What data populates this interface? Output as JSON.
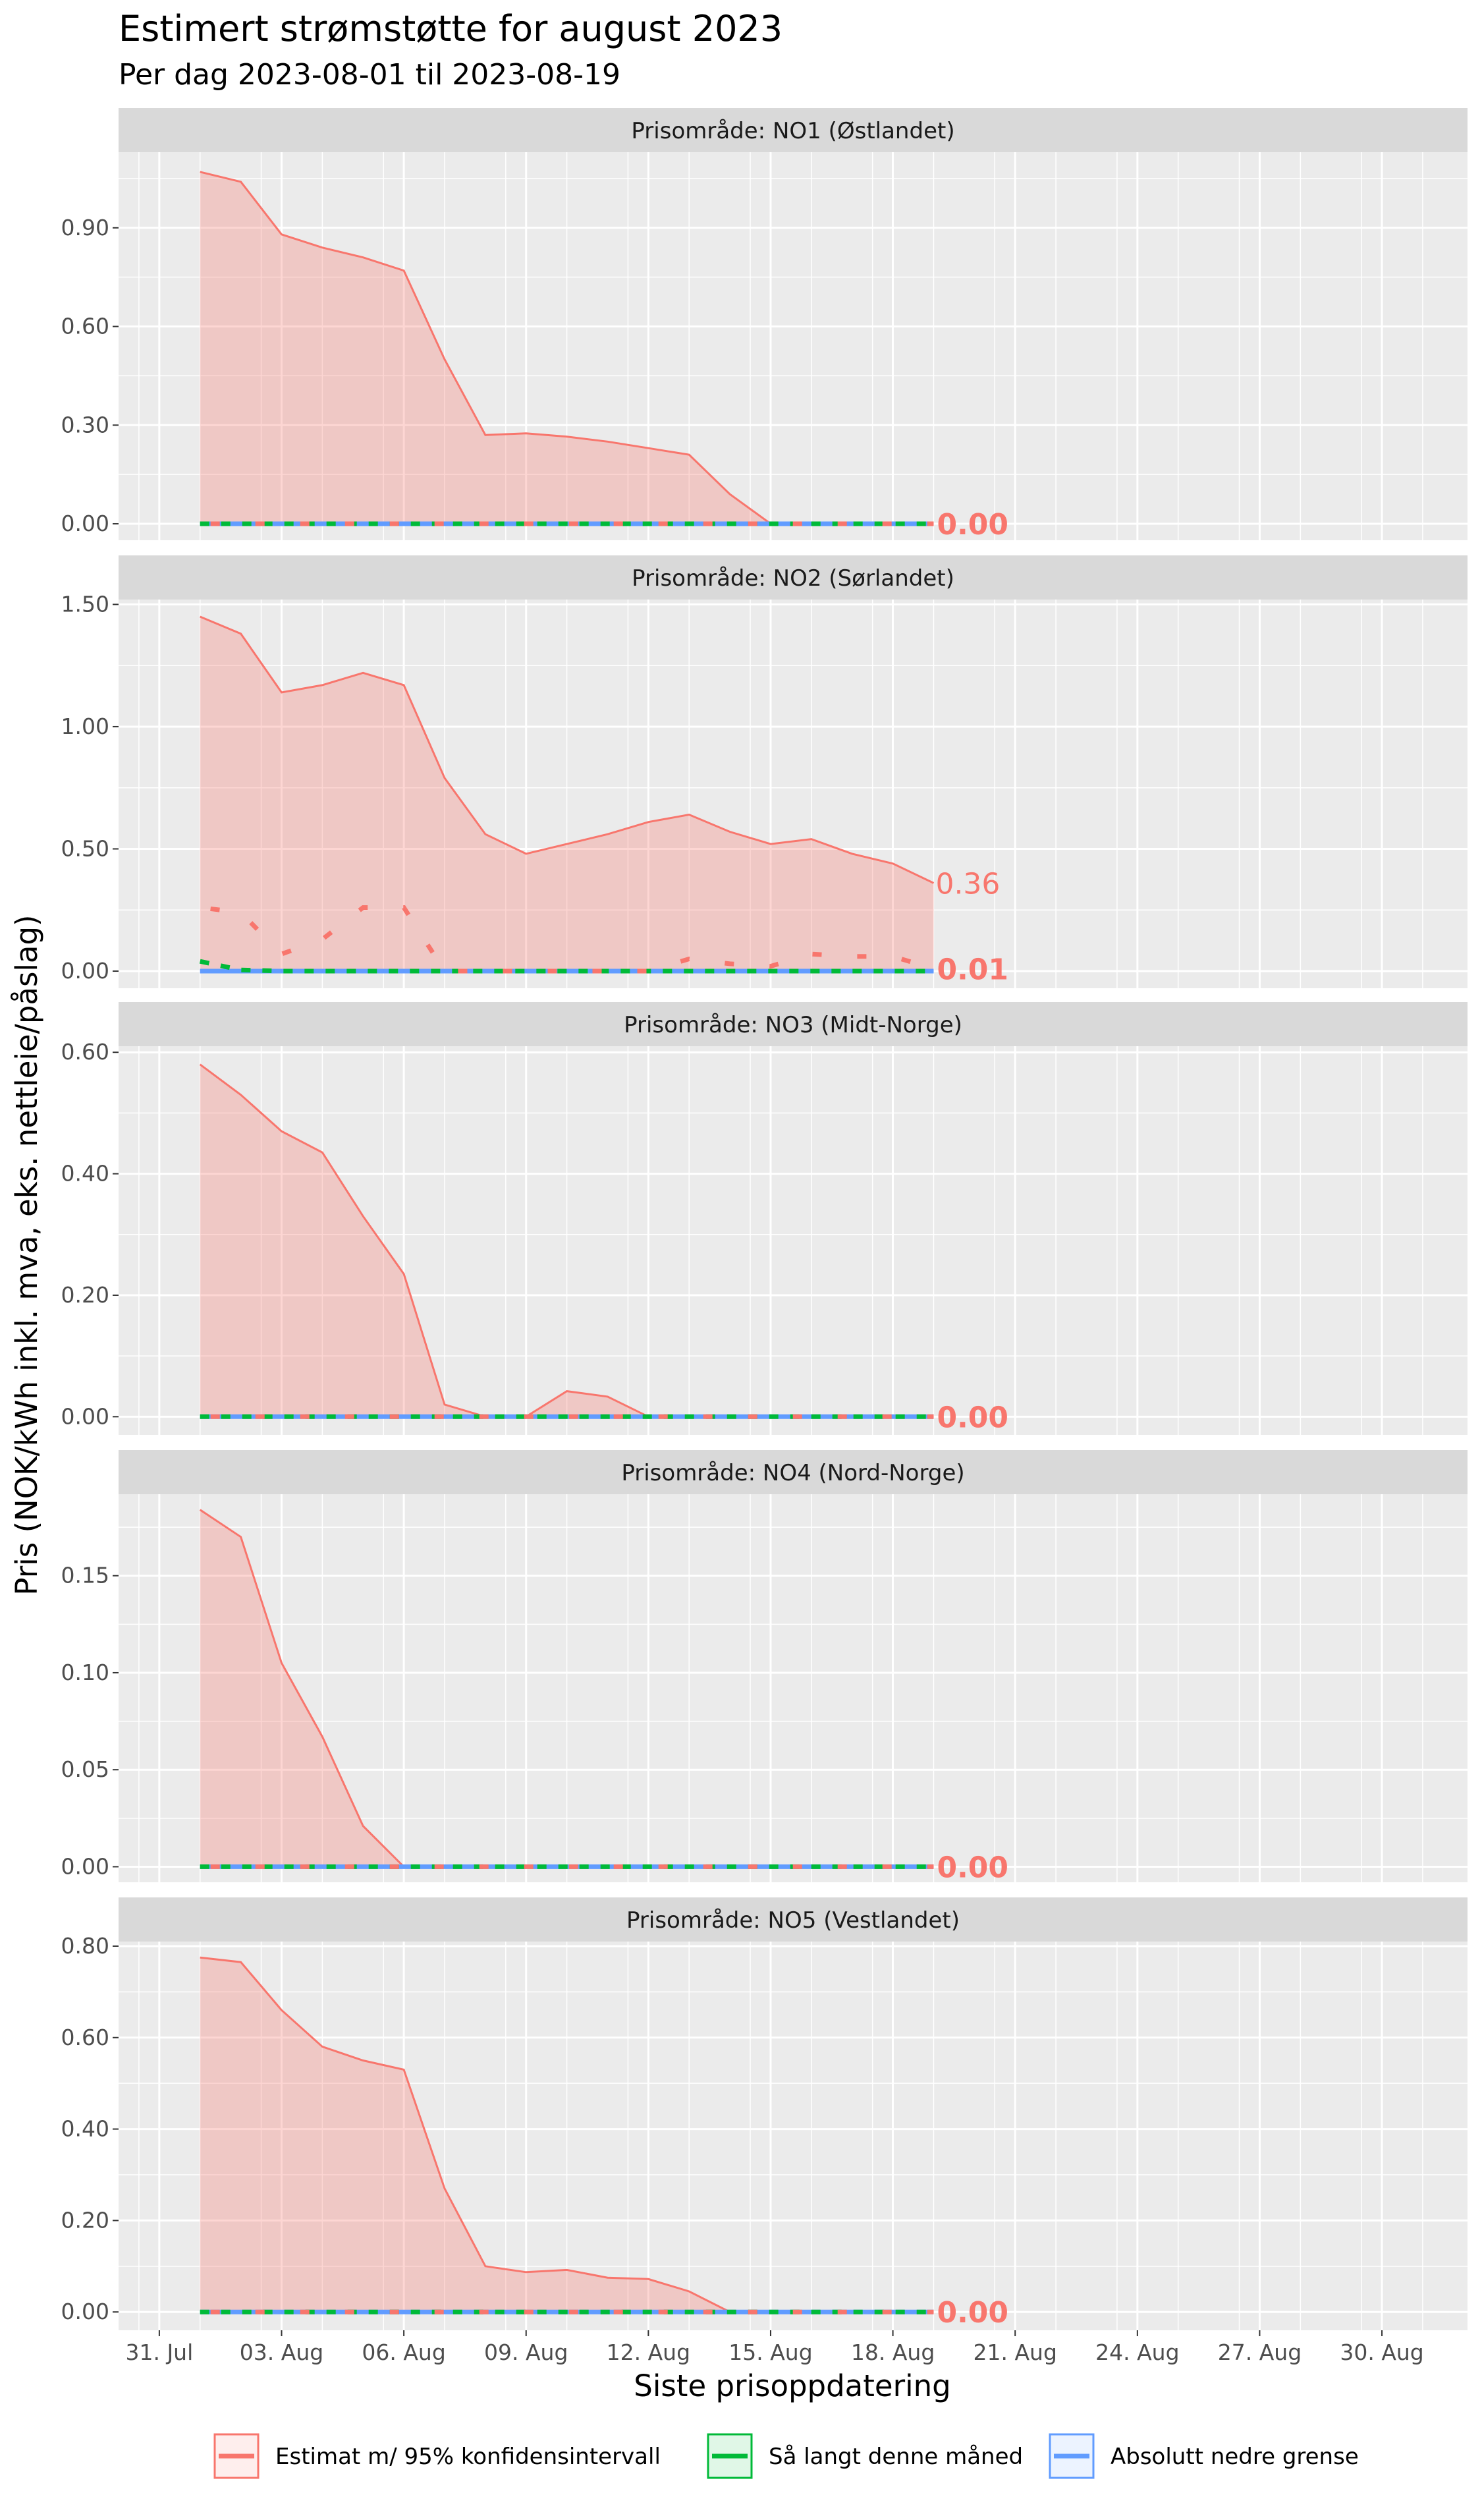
{
  "title": "Estimert strømstøtte for august 2023",
  "subtitle": "Per dag 2023-08-01 til 2023-08-19",
  "chart_data": {
    "type": "line",
    "xlabel": "Siste prisoppdatering",
    "ylabel": "Pris (NOK/kWh inkl. mva, eks. nettleie/påslag)",
    "x_ticks": [
      {
        "day": 0,
        "label": "31. Jul"
      },
      {
        "day": 3,
        "label": "03. Aug"
      },
      {
        "day": 6,
        "label": "06. Aug"
      },
      {
        "day": 9,
        "label": "09. Aug"
      },
      {
        "day": 12,
        "label": "12. Aug"
      },
      {
        "day": 15,
        "label": "15. Aug"
      },
      {
        "day": 18,
        "label": "18. Aug"
      },
      {
        "day": 21,
        "label": "21. Aug"
      },
      {
        "day": 24,
        "label": "24. Aug"
      },
      {
        "day": 27,
        "label": "27. Aug"
      },
      {
        "day": 30,
        "label": "30. Aug"
      }
    ],
    "x_days": [
      1,
      2,
      3,
      4,
      5,
      6,
      7,
      8,
      9,
      10,
      11,
      12,
      13,
      14,
      15,
      16,
      17,
      18,
      19
    ],
    "xlim": [
      -1,
      32.1
    ],
    "legend": {
      "position": "bottom",
      "items": [
        {
          "label": "Estimat m/ 95% konfidensintervall",
          "color": "#F8766D"
        },
        {
          "label": "Så langt denne måned",
          "color": "#00BA38"
        },
        {
          "label": "Absolutt nedre grense",
          "color": "#619CFF"
        }
      ]
    },
    "panels": [
      {
        "strip": "Prisområde: NO1 (Østlandet)",
        "ylim": [
          -0.05,
          1.13
        ],
        "yticks": [
          0,
          0.3,
          0.6,
          0.9
        ],
        "ytick_labels": [
          "0.00",
          "0.30",
          "0.60",
          "0.90"
        ],
        "upper": [
          1.07,
          1.04,
          0.88,
          0.84,
          0.81,
          0.77,
          0.5,
          0.27,
          0.275,
          0.265,
          0.25,
          0.23,
          0.21,
          0.09,
          0,
          0,
          0,
          0,
          0
        ],
        "estimate": [
          0,
          0,
          0,
          0,
          0,
          0,
          0,
          0,
          0,
          0,
          0,
          0,
          0,
          0,
          0,
          0,
          0,
          0,
          0
        ],
        "so_far": [
          0,
          0,
          0,
          0,
          0,
          0,
          0,
          0,
          0,
          0,
          0,
          0,
          0,
          0,
          0,
          0,
          0,
          0,
          0
        ],
        "end_label": "0.00",
        "upper_label": ""
      },
      {
        "strip": "Prisområde: NO2 (Sørlandet)",
        "ylim": [
          -0.07,
          1.52
        ],
        "yticks": [
          0,
          0.5,
          1.0,
          1.5
        ],
        "ytick_labels": [
          "0.00",
          "0.50",
          "1.00",
          "1.50"
        ],
        "upper": [
          1.45,
          1.38,
          1.14,
          1.17,
          1.22,
          1.17,
          0.79,
          0.56,
          0.48,
          0.52,
          0.56,
          0.61,
          0.64,
          0.57,
          0.52,
          0.54,
          0.48,
          0.44,
          0.36
        ],
        "estimate": [
          0.26,
          0.24,
          0.07,
          0.13,
          0.26,
          0.26,
          0,
          0,
          0,
          0,
          0,
          0,
          0.05,
          0.03,
          0.02,
          0.07,
          0.06,
          0.06,
          0.01
        ],
        "so_far": [
          0.04,
          0.005,
          0,
          0,
          0,
          0,
          0,
          0,
          0,
          0,
          0,
          0,
          0,
          0,
          0,
          0,
          0,
          0,
          0
        ],
        "end_label": "0.01",
        "upper_label": "0.36"
      },
      {
        "strip": "Prisområde: NO3 (Midt-Norge)",
        "ylim": [
          -0.03,
          0.61
        ],
        "yticks": [
          0,
          0.2,
          0.4,
          0.6
        ],
        "ytick_labels": [
          "0.00",
          "0.20",
          "0.40",
          "0.60"
        ],
        "upper": [
          0.58,
          0.53,
          0.47,
          0.435,
          0.33,
          0.235,
          0.02,
          0,
          0,
          0.042,
          0.033,
          0,
          0,
          0,
          0,
          0,
          0,
          0,
          0
        ],
        "estimate": [
          0,
          0,
          0,
          0,
          0,
          0,
          0,
          0,
          0,
          0,
          0,
          0,
          0,
          0,
          0,
          0,
          0,
          0,
          0
        ],
        "so_far": [
          0,
          0,
          0,
          0,
          0,
          0,
          0,
          0,
          0,
          0,
          0,
          0,
          0,
          0,
          0,
          0,
          0,
          0,
          0
        ],
        "end_label": "0.00",
        "upper_label": ""
      },
      {
        "strip": "Prisområde: NO4 (Nord-Norge)",
        "ylim": [
          -0.008,
          0.192
        ],
        "yticks": [
          0,
          0.05,
          0.1,
          0.15
        ],
        "ytick_labels": [
          "0.00",
          "0.05",
          "0.10",
          "0.15"
        ],
        "upper": [
          0.184,
          0.17,
          0.105,
          0.067,
          0.021,
          0,
          0,
          0,
          0,
          0,
          0,
          0,
          0,
          0,
          0,
          0,
          0,
          0,
          0
        ],
        "estimate": [
          0,
          0,
          0,
          0,
          0,
          0,
          0,
          0,
          0,
          0,
          0,
          0,
          0,
          0,
          0,
          0,
          0,
          0,
          0
        ],
        "so_far": [
          0,
          0,
          0,
          0,
          0,
          0,
          0,
          0,
          0,
          0,
          0,
          0,
          0,
          0,
          0,
          0,
          0,
          0,
          0
        ],
        "end_label": "0.00",
        "upper_label": ""
      },
      {
        "strip": "Prisområde: NO5 (Vestlandet)",
        "ylim": [
          -0.04,
          0.81
        ],
        "yticks": [
          0,
          0.2,
          0.4,
          0.6,
          0.8
        ],
        "ytick_labels": [
          "0.00",
          "0.20",
          "0.40",
          "0.60",
          "0.80"
        ],
        "upper": [
          0.775,
          0.765,
          0.66,
          0.58,
          0.55,
          0.53,
          0.27,
          0.1,
          0.087,
          0.092,
          0.075,
          0.072,
          0.045,
          0,
          0,
          0,
          0,
          0,
          0
        ],
        "estimate": [
          0,
          0,
          0,
          0,
          0,
          0,
          0,
          0,
          0,
          0,
          0,
          0,
          0,
          0,
          0,
          0,
          0,
          0,
          0
        ],
        "so_far": [
          0,
          0,
          0,
          0,
          0,
          0,
          0,
          0,
          0,
          0,
          0,
          0,
          0,
          0,
          0,
          0,
          0,
          0,
          0
        ],
        "end_label": "0.00",
        "upper_label": ""
      }
    ]
  }
}
